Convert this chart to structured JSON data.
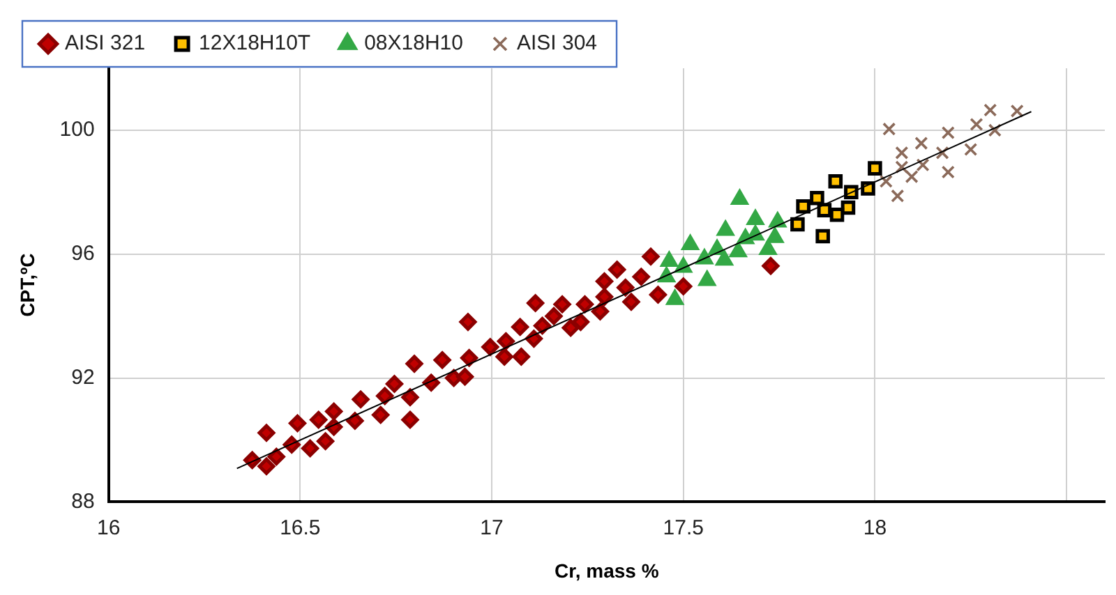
{
  "chart_data": {
    "type": "scatter",
    "xlabel": "Cr, mass %",
    "ylabel": "CPT,ºC",
    "xlim": [
      16,
      18.6
    ],
    "ylim": [
      88,
      102
    ],
    "xticks": [
      16,
      16.5,
      17,
      17.5,
      18,
      {
        "value": 18.5,
        "label": null
      }
    ],
    "yticks": [
      88,
      92,
      96,
      100
    ],
    "grid": true,
    "legend": "top left",
    "series": [
      {
        "name": "AISI 321",
        "color": "#c00000",
        "marker": "diamond",
        "x": [
          16.375,
          16.412,
          16.412,
          16.438,
          16.478,
          16.493,
          16.526,
          16.548,
          16.566,
          16.588,
          16.588,
          16.643,
          16.658,
          16.71,
          16.721,
          16.746,
          16.787,
          16.787,
          16.798,
          16.842,
          16.871,
          16.901,
          16.93,
          16.938,
          16.941,
          16.996,
          17.033,
          17.037,
          17.074,
          17.077,
          17.11,
          17.114,
          17.132,
          17.162,
          17.184,
          17.206,
          17.232,
          17.243,
          17.283,
          17.294,
          17.294,
          17.327,
          17.349,
          17.364,
          17.39,
          17.415,
          17.434,
          17.5,
          17.728
        ],
        "values": [
          89.35,
          89.15,
          90.23,
          89.46,
          89.85,
          90.54,
          89.73,
          90.65,
          89.96,
          90.42,
          90.92,
          90.62,
          91.31,
          90.81,
          91.42,
          91.81,
          90.65,
          91.38,
          92.46,
          91.85,
          92.58,
          92.0,
          92.04,
          93.81,
          92.65,
          93.0,
          92.69,
          93.19,
          93.65,
          92.69,
          93.27,
          94.42,
          93.69,
          94.0,
          94.38,
          93.62,
          93.81,
          94.38,
          94.15,
          94.62,
          95.12,
          95.5,
          94.92,
          94.46,
          95.27,
          95.92,
          94.69,
          94.96,
          95.62
        ]
      },
      {
        "name": "12X18H10T",
        "color": "#ffc000",
        "marker": "square",
        "x": [
          18.0,
          17.897,
          17.938,
          17.982,
          17.849,
          17.813,
          17.868,
          17.93,
          17.901,
          17.798,
          17.864
        ],
        "values": [
          98.77,
          98.35,
          98.0,
          98.12,
          97.81,
          97.54,
          97.42,
          97.5,
          97.27,
          96.96,
          96.58
        ]
      },
      {
        "name": "08X18H10",
        "color": "#33a845",
        "marker": "triangle",
        "x": [
          17.647,
          17.688,
          17.746,
          17.61,
          17.662,
          17.688,
          17.739,
          17.518,
          17.588,
          17.643,
          17.721,
          17.555,
          17.607,
          17.463,
          17.5,
          17.456,
          17.562,
          17.478
        ],
        "values": [
          97.77,
          97.12,
          97.04,
          96.77,
          96.5,
          96.62,
          96.54,
          96.31,
          96.15,
          96.08,
          96.15,
          95.85,
          95.81,
          95.77,
          95.58,
          95.27,
          95.15,
          94.54
        ]
      },
      {
        "name": "AISI 304",
        "color": "#8b6a5a",
        "marker": "cross",
        "x": [
          18.037,
          18.301,
          18.371,
          18.265,
          18.191,
          18.313,
          18.121,
          18.07,
          18.176,
          18.25,
          18.125,
          18.07,
          18.096,
          18.191,
          18.029,
          18.059
        ],
        "values": [
          100.04,
          100.65,
          100.62,
          100.19,
          99.92,
          100.0,
          99.58,
          99.27,
          99.27,
          99.38,
          98.88,
          98.81,
          98.5,
          98.65,
          98.35,
          97.88
        ]
      },
      {
        "type": "line",
        "color": "#000000",
        "marker": "none",
        "x": [
          16.335,
          18.408
        ],
        "values": [
          89.08,
          100.6
        ]
      }
    ]
  }
}
